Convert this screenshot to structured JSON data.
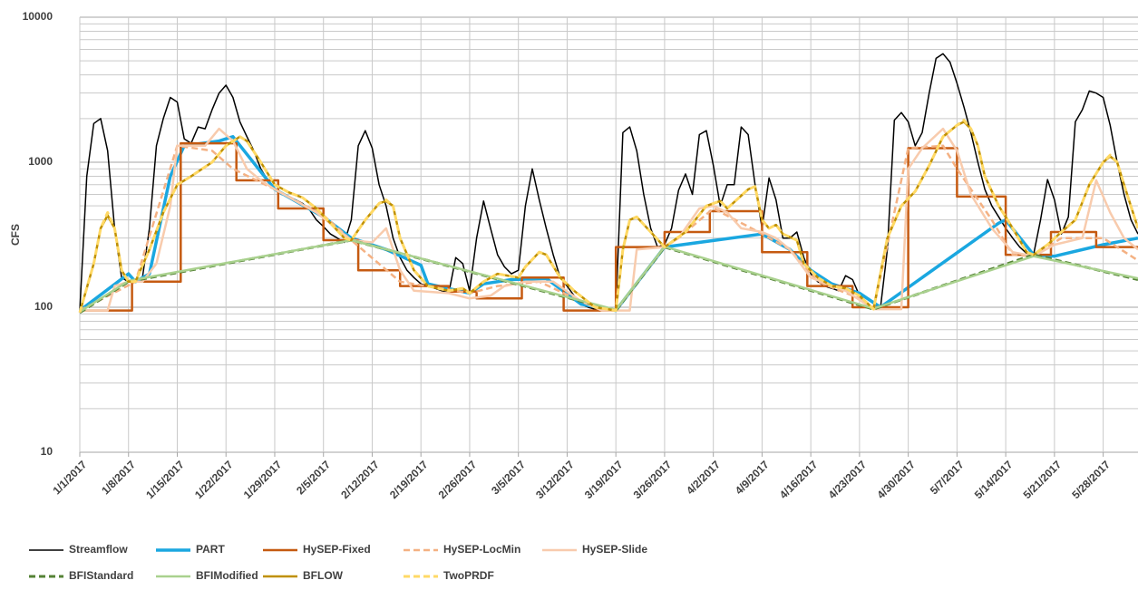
{
  "chart_data": {
    "type": "line",
    "y_label": "CFS",
    "y_log": true,
    "grid": true,
    "minor_grid": true,
    "legend": "bottom",
    "xlim": [
      0,
      152
    ],
    "ylim": [
      10,
      10000
    ],
    "yticks": [
      10,
      100,
      1000,
      10000
    ],
    "xticks": [
      {
        "value": 0,
        "label": "1/1/2017"
      },
      {
        "value": 7,
        "label": "1/8/2017"
      },
      {
        "value": 14,
        "label": "1/15/2017"
      },
      {
        "value": 21,
        "label": "1/22/2017"
      },
      {
        "value": 28,
        "label": "1/29/2017"
      },
      {
        "value": 35,
        "label": "2/5/2017"
      },
      {
        "value": 42,
        "label": "2/12/2017"
      },
      {
        "value": 49,
        "label": "2/19/2017"
      },
      {
        "value": 56,
        "label": "2/26/2017"
      },
      {
        "value": 63,
        "label": "3/5/2017"
      },
      {
        "value": 70,
        "label": "3/12/2017"
      },
      {
        "value": 77,
        "label": "3/19/2017"
      },
      {
        "value": 84,
        "label": "3/26/2017"
      },
      {
        "value": 91,
        "label": "4/2/2017"
      },
      {
        "value": 98,
        "label": "4/9/2017"
      },
      {
        "value": 105,
        "label": "4/16/2017"
      },
      {
        "value": 112,
        "label": "4/23/2017"
      },
      {
        "value": 119,
        "label": "4/30/2017"
      },
      {
        "value": 126,
        "label": "5/7/2017"
      },
      {
        "value": 133,
        "label": "5/14/2017"
      },
      {
        "value": 140,
        "label": "5/21/2017"
      },
      {
        "value": 147,
        "label": "5/28/2017"
      }
    ],
    "series": [
      {
        "name": "Streamflow",
        "color": "#000000",
        "dashed": false,
        "x": [
          0,
          1,
          2,
          3,
          4,
          5,
          6,
          7,
          8,
          9,
          10,
          11,
          12,
          13,
          14,
          15,
          16,
          17,
          18,
          19,
          20,
          21,
          22,
          23,
          24,
          25,
          26,
          27,
          28,
          29,
          30,
          31,
          32,
          33,
          34,
          35,
          36,
          37,
          38,
          39,
          40,
          41,
          42,
          43,
          44,
          45,
          46,
          47,
          48,
          49,
          50,
          51,
          52,
          53,
          54,
          55,
          56,
          57,
          58,
          59,
          60,
          61,
          62,
          63,
          64,
          65,
          66,
          67,
          68,
          69,
          70,
          71,
          72,
          73,
          74,
          75,
          76,
          77,
          78,
          79,
          80,
          81,
          82,
          83,
          84,
          85,
          86,
          87,
          88,
          89,
          90,
          91,
          92,
          93,
          94,
          95,
          96,
          97,
          98,
          99,
          100,
          101,
          102,
          103,
          104,
          105,
          106,
          107,
          108,
          109,
          110,
          111,
          112,
          113,
          114,
          115,
          116,
          117,
          118,
          119,
          120,
          121,
          122,
          123,
          124,
          125,
          126,
          127,
          128,
          129,
          130,
          131,
          132,
          133,
          134,
          135,
          136,
          137,
          138,
          139,
          140,
          141,
          142,
          143,
          144,
          145,
          146,
          147,
          148,
          149,
          150,
          151,
          152
        ],
        "values": [
          95,
          800,
          1850,
          2000,
          1200,
          350,
          160,
          150,
          150,
          160,
          350,
          1300,
          2000,
          2800,
          2600,
          1450,
          1350,
          1750,
          1700,
          2300,
          3000,
          3400,
          2800,
          1900,
          1500,
          1200,
          900,
          750,
          650,
          600,
          580,
          550,
          520,
          470,
          400,
          360,
          320,
          300,
          280,
          400,
          1300,
          1650,
          1250,
          700,
          500,
          300,
          220,
          180,
          160,
          145,
          140,
          135,
          130,
          125,
          220,
          200,
          130,
          300,
          540,
          350,
          230,
          190,
          170,
          180,
          500,
          900,
          550,
          350,
          230,
          160,
          140,
          120,
          105,
          100,
          97,
          95,
          95,
          97,
          1600,
          1750,
          1200,
          600,
          350,
          260,
          270,
          350,
          640,
          830,
          600,
          1550,
          1650,
          950,
          500,
          700,
          700,
          1750,
          1550,
          700,
          350,
          780,
          550,
          300,
          300,
          330,
          220,
          170,
          150,
          140,
          135,
          130,
          165,
          155,
          120,
          105,
          98,
          98,
          250,
          1950,
          2200,
          1900,
          1300,
          1600,
          3000,
          5200,
          5600,
          4900,
          3500,
          2400,
          1600,
          1000,
          650,
          500,
          420,
          350,
          300,
          260,
          235,
          230,
          400,
          760,
          550,
          320,
          420,
          1900,
          2300,
          3100,
          3000,
          2800,
          1800,
          1000,
          600,
          400,
          320
        ]
      },
      {
        "name": "PART",
        "color": "#1aa7e0",
        "dashed": false,
        "x": [
          0,
          7,
          8,
          10,
          13,
          15,
          20,
          22,
          28,
          35,
          39,
          44,
          49,
          50,
          56,
          58,
          62,
          67,
          72,
          77,
          84,
          98,
          102,
          105,
          108,
          112,
          115,
          132,
          133,
          137,
          140,
          147,
          152
        ],
        "values": [
          95,
          170,
          150,
          170,
          800,
          1300,
          1400,
          1500,
          650,
          420,
          300,
          250,
          195,
          145,
          125,
          145,
          155,
          158,
          105,
          95,
          260,
          320,
          250,
          180,
          145,
          125,
          100,
          380,
          400,
          230,
          225,
          270,
          300
        ]
      },
      {
        "name": "HySEP-Fixed",
        "color": "#c55a11",
        "dashed": false,
        "x": [
          0,
          7.5,
          7.5,
          14.5,
          14.5,
          22.5,
          22.5,
          28.5,
          28.5,
          35,
          35,
          40,
          40,
          46,
          46,
          53,
          53,
          57,
          57,
          63.5,
          63.5,
          69.5,
          69.5,
          77,
          77,
          84,
          84,
          90.5,
          90.5,
          98,
          98,
          104.5,
          104.5,
          111,
          111,
          119,
          119,
          126,
          126,
          133,
          133,
          139.5,
          139.5,
          146,
          146,
          152
        ],
        "values": [
          95,
          95,
          150,
          150,
          1350,
          1350,
          750,
          750,
          480,
          480,
          290,
          290,
          180,
          180,
          140,
          140,
          128,
          128,
          115,
          115,
          160,
          160,
          95,
          95,
          260,
          260,
          330,
          330,
          460,
          460,
          240,
          240,
          140,
          140,
          100,
          100,
          1250,
          1250,
          580,
          580,
          230,
          230,
          330,
          330,
          260,
          260
        ]
      },
      {
        "name": "HySEP-LocMin",
        "color": "#f4b183",
        "dashed": true,
        "x": [
          0,
          8,
          14,
          19,
          22,
          28,
          35,
          39,
          46,
          56,
          60,
          66,
          72,
          77,
          84,
          86,
          91,
          96,
          98,
          102,
          106,
          112,
          114,
          119,
          124,
          126,
          131,
          134,
          137,
          141,
          147,
          152
        ],
        "values": [
          95,
          150,
          1300,
          1200,
          900,
          650,
          430,
          290,
          150,
          125,
          140,
          150,
          110,
          95,
          260,
          300,
          480,
          360,
          320,
          250,
          150,
          115,
          97,
          1250,
          1300,
          900,
          400,
          230,
          225,
          300,
          300,
          210
        ]
      },
      {
        "name": "HySEP-Slide",
        "color": "#f8cbad",
        "dashed": false,
        "x": [
          0,
          4,
          5,
          7,
          9,
          11,
          13,
          14,
          18,
          20,
          22,
          24,
          26,
          28,
          34,
          39,
          42,
          44,
          46,
          48,
          53,
          56,
          59,
          61,
          64,
          68,
          72,
          75,
          79,
          80,
          84,
          86,
          89,
          91,
          93,
          95,
          98,
          100,
          102,
          105,
          110,
          114,
          118,
          119,
          121,
          124,
          126,
          128,
          131,
          134,
          137,
          140,
          144,
          146,
          148,
          150,
          152
        ],
        "values": [
          95,
          95,
          140,
          150,
          150,
          200,
          500,
          1300,
          1300,
          1700,
          1400,
          900,
          750,
          650,
          450,
          290,
          280,
          350,
          180,
          130,
          125,
          115,
          120,
          140,
          150,
          150,
          110,
          95,
          95,
          250,
          260,
          300,
          480,
          500,
          450,
          350,
          330,
          300,
          250,
          160,
          130,
          97,
          97,
          900,
          1250,
          1700,
          1200,
          600,
          350,
          240,
          225,
          270,
          300,
          750,
          450,
          300,
          250
        ]
      },
      {
        "name": "BFIStandard",
        "color": "#548235",
        "dashed": true,
        "x": [
          0,
          7,
          39,
          77,
          84,
          114,
          137,
          152
        ],
        "values": [
          92,
          150,
          290,
          95,
          260,
          97,
          230,
          155
        ]
      },
      {
        "name": "BFIModified",
        "color": "#a9d18e",
        "dashed": false,
        "x": [
          0,
          7,
          39,
          77,
          84,
          114,
          137,
          152
        ],
        "values": [
          93,
          152,
          290,
          96,
          262,
          98,
          225,
          158
        ]
      },
      {
        "name": "BFLOW",
        "color": "#bf9000",
        "dashed": false,
        "x": [
          0,
          2,
          3,
          4,
          5,
          6,
          7,
          8,
          10,
          12,
          14,
          16,
          19,
          21,
          23,
          24,
          26,
          28,
          30,
          32,
          34,
          36,
          38,
          39,
          41,
          43,
          44,
          45,
          46,
          48,
          50,
          53,
          55,
          56,
          58,
          60,
          63,
          64,
          66,
          67,
          69,
          71,
          74,
          77,
          78,
          79,
          80,
          82,
          84,
          87,
          90,
          92,
          93,
          96,
          97,
          98,
          99,
          100,
          101,
          103,
          104,
          106,
          108,
          110,
          112,
          114,
          116,
          118,
          120,
          122,
          124,
          126,
          127,
          128,
          129,
          130,
          132,
          133,
          134,
          136,
          137,
          139,
          141,
          143,
          145,
          147,
          148,
          149,
          150,
          152
        ],
        "values": [
          92,
          200,
          350,
          430,
          350,
          180,
          150,
          150,
          250,
          450,
          700,
          800,
          1000,
          1300,
          1500,
          1400,
          1000,
          700,
          620,
          570,
          480,
          380,
          300,
          290,
          400,
          520,
          540,
          500,
          300,
          180,
          140,
          130,
          135,
          125,
          150,
          170,
          160,
          190,
          240,
          230,
          160,
          130,
          100,
          95,
          250,
          400,
          420,
          330,
          260,
          330,
          500,
          540,
          480,
          650,
          680,
          400,
          350,
          370,
          320,
          290,
          200,
          160,
          140,
          135,
          120,
          97,
          300,
          500,
          630,
          950,
          1500,
          1800,
          1900,
          1700,
          1300,
          800,
          500,
          420,
          350,
          240,
          230,
          270,
          330,
          400,
          700,
          1000,
          1100,
          1000,
          700,
          350
        ]
      },
      {
        "name": "TwoPRDF",
        "color": "#ffd966",
        "dashed": true,
        "x": [
          0,
          2,
          3,
          4,
          5,
          6,
          7,
          8,
          10,
          12,
          14,
          16,
          19,
          21,
          23,
          24,
          26,
          28,
          30,
          32,
          34,
          36,
          38,
          39,
          41,
          43,
          44,
          45,
          46,
          48,
          50,
          53,
          55,
          56,
          58,
          60,
          63,
          64,
          66,
          67,
          69,
          71,
          74,
          77,
          78,
          79,
          80,
          82,
          84,
          87,
          90,
          92,
          93,
          96,
          97,
          98,
          99,
          100,
          101,
          103,
          104,
          106,
          108,
          110,
          112,
          114,
          116,
          118,
          120,
          122,
          124,
          126,
          127,
          128,
          129,
          130,
          132,
          133,
          134,
          136,
          137,
          139,
          141,
          143,
          145,
          147,
          148,
          149,
          150,
          152
        ],
        "values": [
          92,
          200,
          350,
          450,
          350,
          180,
          150,
          150,
          250,
          450,
          700,
          800,
          1000,
          1300,
          1500,
          1400,
          1000,
          700,
          620,
          570,
          480,
          380,
          300,
          290,
          400,
          520,
          550,
          500,
          300,
          180,
          140,
          130,
          135,
          125,
          150,
          170,
          160,
          190,
          240,
          230,
          160,
          130,
          100,
          95,
          250,
          400,
          420,
          330,
          260,
          330,
          500,
          540,
          480,
          650,
          680,
          400,
          350,
          370,
          320,
          290,
          200,
          160,
          140,
          135,
          120,
          97,
          300,
          500,
          630,
          950,
          1500,
          1800,
          1950,
          1700,
          1300,
          800,
          500,
          420,
          350,
          240,
          230,
          270,
          330,
          400,
          700,
          1000,
          1120,
          1000,
          700,
          350
        ]
      }
    ]
  }
}
